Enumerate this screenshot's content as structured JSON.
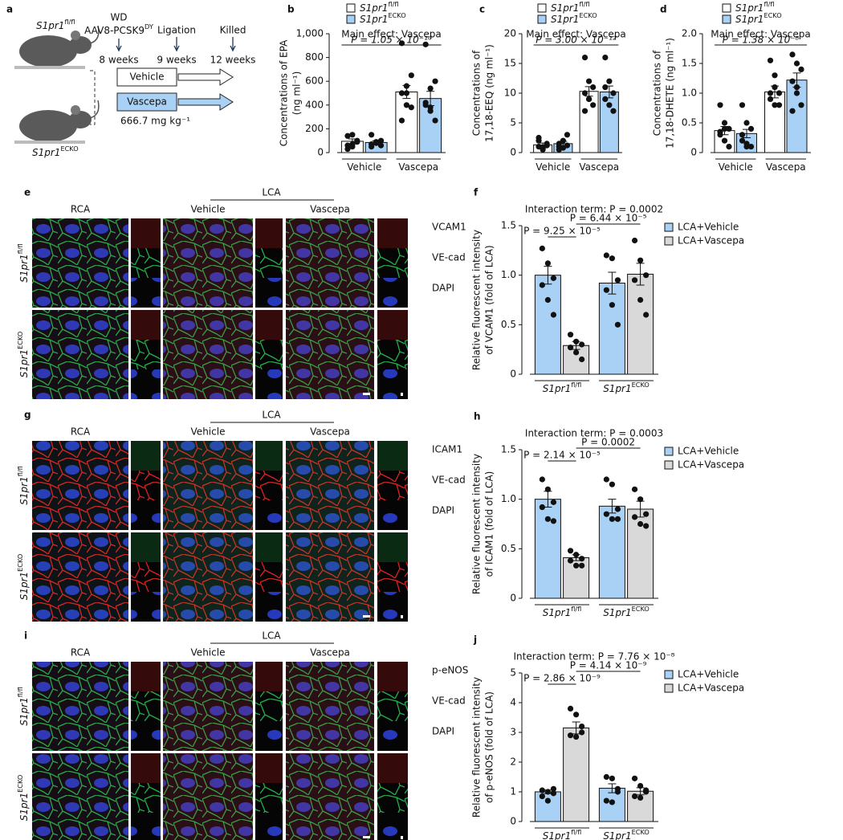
{
  "schematic": {
    "label": "a",
    "mouse_top": {
      "text": "S1pr1",
      "sup": "fl/fl"
    },
    "mouse_bottom": {
      "text": "S1pr1",
      "sup": "ECKO"
    },
    "diet": "WD",
    "virus": {
      "text": "AAV8-PCSK9",
      "sup": "DY"
    },
    "ligation": "Ligation",
    "killed": "Killed",
    "times": [
      "8 weeks",
      "9 weeks",
      "12 weeks"
    ],
    "vehicle": "Vehicle",
    "vascepa": "Vascepa",
    "dose": "666.7 mg kg⁻¹"
  },
  "micrographs": [
    {
      "label": "e",
      "top": "LCA",
      "columns": [
        "RCA",
        "Vehicle",
        "Vascepa"
      ],
      "rows": [
        {
          "text": "S1pr1",
          "sup": "fl/fl"
        },
        {
          "text": "S1pr1",
          "sup": "ECKO"
        }
      ],
      "stains": [
        {
          "text": "VCAM1",
          "color": "#e02020"
        },
        {
          "text": "VE-cad",
          "color": "#22b04a"
        },
        {
          "text": "DAPI",
          "color": "#2a3fd0"
        }
      ]
    },
    {
      "label": "g",
      "top": "LCA",
      "columns": [
        "RCA",
        "Vehicle",
        "Vascepa"
      ],
      "rows": [
        {
          "text": "S1pr1",
          "sup": "fl/fl"
        },
        {
          "text": "S1pr1",
          "sup": "ECKO"
        }
      ],
      "stains": [
        {
          "text": "ICAM1",
          "color": "#22b04a"
        },
        {
          "text": "VE-cad",
          "color": "#e02020"
        },
        {
          "text": "DAPI",
          "color": "#2a3fd0"
        }
      ]
    },
    {
      "label": "i",
      "top": "LCA",
      "columns": [
        "RCA",
        "Vehicle",
        "Vascepa"
      ],
      "rows": [
        {
          "text": "S1pr1",
          "sup": "fl/fl"
        },
        {
          "text": "S1pr1",
          "sup": "ECKO"
        }
      ],
      "stains": [
        {
          "text": "p-eNOS",
          "color": "#e02020"
        },
        {
          "text": "VE-cad",
          "color": "#22b04a"
        },
        {
          "text": "DAPI",
          "color": "#2a3fd0"
        }
      ]
    }
  ],
  "chart_data": [
    {
      "type": "bar",
      "label": "b",
      "ylabel": [
        "Concentrations of EPA",
        "(ng ml⁻¹)"
      ],
      "legend": "top",
      "categories": [
        {
          "text": "Vehicle"
        },
        {
          "text": "Vascepa"
        }
      ],
      "series": [
        {
          "name": {
            "text": "S1pr1",
            "sup": "fl/fl"
          },
          "color": "#ffffff",
          "values": [
            95,
            510
          ],
          "errors": [
            20,
            55
          ],
          "points": [
            [
              60,
              70,
              100,
              140,
              150,
              90,
              30,
              50
            ],
            [
              920,
              560,
              650,
              500,
              400,
              380,
              270,
              500
            ]
          ]
        },
        {
          "name": {
            "text": "S1pr1",
            "sup": "ECKO"
          },
          "color": "#a9d1f5",
          "values": [
            85,
            455
          ],
          "errors": [
            15,
            60
          ],
          "points": [
            [
              50,
              80,
              100,
              150,
              90,
              60,
              70
            ],
            [
              910,
              540,
              600,
              420,
              350,
              270,
              400,
              380
            ]
          ]
        }
      ],
      "ylim": [
        0,
        1000
      ],
      "yticks": [
        0,
        200,
        400,
        600,
        800,
        {
          "value": 1000,
          "label": "1,000"
        }
      ],
      "note": "Main effect: Vascepa",
      "comparisons": [
        "P = 1.05 × 10⁻¹⁰"
      ]
    },
    {
      "type": "bar",
      "label": "c",
      "ylabel": [
        "Concentrations of",
        "17,18-EEQ (ng ml⁻¹)"
      ],
      "legend": "top",
      "categories": [
        {
          "text": "Vehicle"
        },
        {
          "text": "Vascepa"
        }
      ],
      "series": [
        {
          "name": {
            "text": "S1pr1",
            "sup": "fl/fl"
          },
          "color": "#ffffff",
          "values": [
            1.3,
            10.3
          ],
          "errors": [
            0.3,
            0.8
          ],
          "points": [
            [
              1,
              0.5,
              1.5,
              2,
              0.8,
              1.2,
              2.5,
              0.7
            ],
            [
              16,
              12,
              11,
              10,
              9,
              8,
              7,
              9
            ]
          ]
        },
        {
          "name": {
            "text": "S1pr1",
            "sup": "ECKO"
          },
          "color": "#a9d1f5",
          "values": [
            1.5,
            10.2
          ],
          "errors": [
            0.4,
            1.0
          ],
          "points": [
            [
              1,
              2,
              3,
              1.5,
              0.8,
              1.2,
              0.5
            ],
            [
              16,
              12,
              10,
              11,
              8,
              7,
              9
            ]
          ]
        }
      ],
      "ylim": [
        0,
        20
      ],
      "yticks": [
        0,
        5,
        10,
        15,
        20
      ],
      "note": "Main effect: Vascepa",
      "comparisons": [
        "P = 3.00 × 10⁻¹²"
      ]
    },
    {
      "type": "bar",
      "label": "d",
      "ylabel": [
        "Concentrations of",
        "17,18-DHETE (ng ml⁻¹)"
      ],
      "legend": "top",
      "categories": [
        {
          "text": "Vehicle"
        },
        {
          "text": "Vascepa"
        }
      ],
      "series": [
        {
          "name": {
            "text": "S1pr1",
            "sup": "fl/fl"
          },
          "color": "#ffffff",
          "values": [
            0.37,
            1.02
          ],
          "errors": [
            0.07,
            0.1
          ],
          "points": [
            [
              0.8,
              0.5,
              0.4,
              0.3,
              0.2,
              0.1,
              0.35,
              0.4
            ],
            [
              1.55,
              1.3,
              1.0,
              0.9,
              0.8,
              0.8,
              1.0,
              1.1
            ]
          ]
        },
        {
          "name": {
            "text": "S1pr1",
            "sup": "ECKO"
          },
          "color": "#a9d1f5",
          "values": [
            0.32,
            1.22
          ],
          "errors": [
            0.07,
            0.12
          ],
          "points": [
            [
              0.8,
              0.5,
              0.4,
              0.3,
              0.1,
              0.1,
              0.2,
              0.15
            ],
            [
              1.65,
              1.5,
              1.4,
              1.2,
              1.0,
              0.8,
              0.7,
              1.1
            ]
          ]
        }
      ],
      "ylim": [
        0,
        2
      ],
      "yticks": [
        0,
        0.5,
        {
          "value": 1,
          "label": "1.0"
        },
        1.5,
        {
          "value": 2,
          "label": "2.0"
        }
      ],
      "note": "Main effect: Vascepa",
      "comparisons": [
        "P = 1.38 × 10⁻⁸"
      ]
    },
    {
      "type": "bar",
      "label": "f",
      "ylabel": [
        "Relative fluorescent intensity",
        "of VCAM1 (fold of LCA)"
      ],
      "legend": "right",
      "categories": [
        {
          "text": "S1pr1",
          "sup": "fl/fl"
        },
        {
          "text": "S1pr1",
          "sup": "ECKO"
        }
      ],
      "series": [
        {
          "name": "LCA+Vehicle",
          "color": "#a9d1f5",
          "values": [
            1.0,
            0.92
          ],
          "errors": [
            0.09,
            0.11
          ],
          "points": [
            [
              1.27,
              1.12,
              0.97,
              0.9,
              0.75,
              0.6
            ],
            [
              1.2,
              1.17,
              0.95,
              0.85,
              0.7,
              0.5
            ]
          ]
        },
        {
          "name": "LCA+Vascepa",
          "color": "#d9d9d9",
          "values": [
            0.29,
            1.01
          ],
          "errors": [
            0.04,
            0.11
          ],
          "points": [
            [
              0.4,
              0.33,
              0.3,
              0.27,
              0.22,
              0.15
            ],
            [
              1.35,
              1.15,
              1.0,
              0.95,
              0.75,
              0.6
            ]
          ]
        }
      ],
      "ylim": [
        0,
        1.5
      ],
      "yticks": [
        0,
        0.5,
        {
          "value": 1,
          "label": "1.0"
        },
        1.5
      ],
      "note": "Interaction term: P = 0.0002",
      "comparisons": [
        "P = 9.25 × 10⁻⁵",
        "P = 6.44 × 10⁻⁵"
      ]
    },
    {
      "type": "bar",
      "label": "h",
      "ylabel": [
        "Relative fluorescent intensity",
        "of ICAM1 (fold of LCA)"
      ],
      "legend": "right",
      "categories": [
        {
          "text": "S1pr1",
          "sup": "fl/fl"
        },
        {
          "text": "S1pr1",
          "sup": "ECKO"
        }
      ],
      "series": [
        {
          "name": "LCA+Vehicle",
          "color": "#a9d1f5",
          "values": [
            1.0,
            0.93
          ],
          "errors": [
            0.08,
            0.07
          ],
          "points": [
            [
              1.2,
              1.1,
              0.97,
              0.92,
              0.8,
              0.78
            ],
            [
              1.2,
              1.15,
              0.9,
              0.85,
              0.8,
              0.8
            ]
          ]
        },
        {
          "name": "LCA+Vascepa",
          "color": "#d9d9d9",
          "values": [
            0.41,
            0.9
          ],
          "errors": [
            0.03,
            0.08
          ],
          "points": [
            [
              0.48,
              0.44,
              0.4,
              0.38,
              0.33,
              0.33
            ],
            [
              1.1,
              1.0,
              0.85,
              0.82,
              0.75,
              0.73
            ]
          ]
        }
      ],
      "ylim": [
        0,
        1.5
      ],
      "yticks": [
        0,
        0.5,
        {
          "value": 1,
          "label": "1.0"
        },
        1.5
      ],
      "note": "Interaction term: P = 0.0003",
      "comparisons": [
        "P = 2.14 × 10⁻⁵",
        "P = 0.0002"
      ]
    },
    {
      "type": "bar",
      "label": "j",
      "ylabel": [
        "Relative fluorescent intensity",
        "of p-eNOS (fold of LCA)"
      ],
      "legend": "right",
      "categories": [
        {
          "text": "S1pr1",
          "sup": "fl/fl"
        },
        {
          "text": "S1pr1",
          "sup": "ECKO"
        }
      ],
      "series": [
        {
          "name": "LCA+Vehicle",
          "color": "#a9d1f5",
          "values": [
            1.0,
            1.12
          ],
          "errors": [
            0.06,
            0.15
          ],
          "points": [
            [
              1.05,
              1.0,
              0.95,
              0.85,
              0.7,
              1.1
            ],
            [
              1.5,
              1.45,
              1.0,
              0.7,
              0.65,
              1.1
            ]
          ]
        },
        {
          "name": "LCA+Vascepa",
          "color": "#d9d9d9",
          "values": [
            3.15,
            1.02
          ],
          "errors": [
            0.2,
            0.12
          ],
          "points": [
            [
              3.8,
              3.6,
              3.0,
              2.9,
              2.85,
              3.2
            ],
            [
              1.45,
              1.2,
              1.0,
              0.85,
              0.8,
              1.05
            ]
          ]
        }
      ],
      "ylim": [
        0,
        5
      ],
      "yticks": [
        0,
        1,
        2,
        3,
        4,
        5
      ],
      "note": "Interaction term: P = 7.76 × 10⁻⁸",
      "comparisons": [
        "P = 2.86 × 10⁻⁹",
        "P = 4.14 × 10⁻⁹"
      ]
    }
  ]
}
